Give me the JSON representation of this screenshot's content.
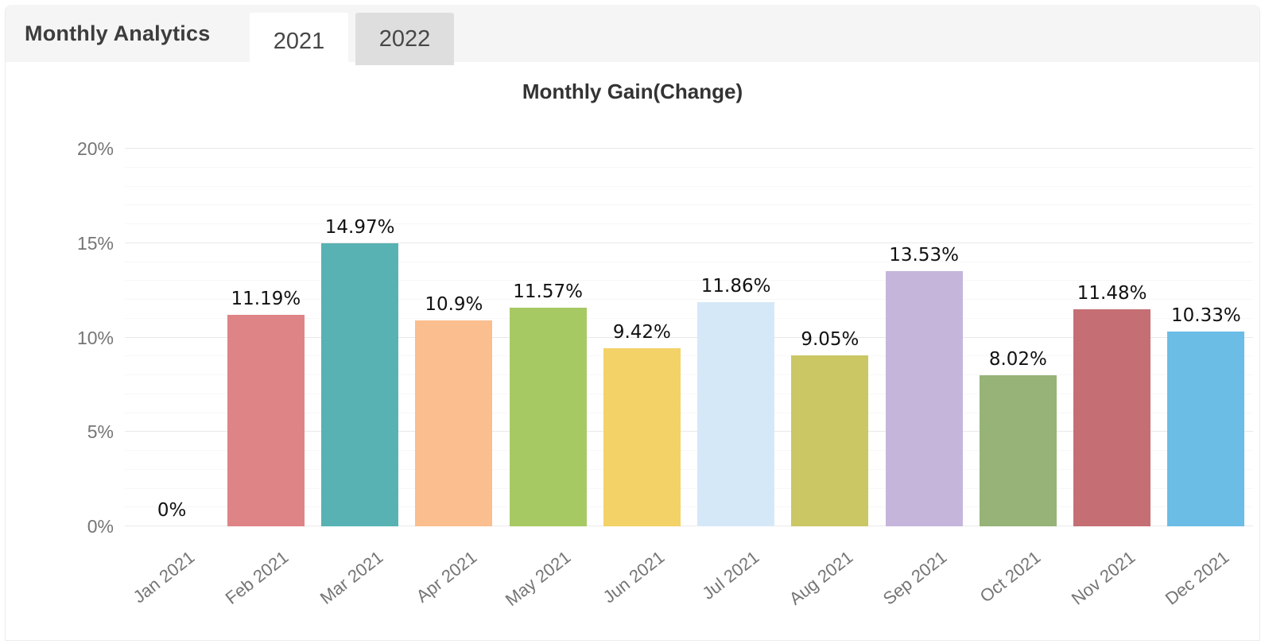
{
  "header": {
    "title": "Monthly Analytics",
    "tabs": [
      {
        "label": "2021",
        "active": true
      },
      {
        "label": "2022",
        "active": false
      }
    ]
  },
  "colors": {
    "header_bg": "#f5f5f6",
    "tab_active_bg": "#ffffff",
    "tab_inactive_bg": "#dedede",
    "header_text": "#3d3d3d",
    "chart_title_text": "#333333",
    "axis_label_text": "#757575",
    "value_label_text": "#111111",
    "gridline_major": "#e9e9e9",
    "gridline_minor": "#f7f7f7"
  },
  "chart_data": {
    "type": "bar",
    "title": "Monthly Gain(Change)",
    "categories": [
      "Jan 2021",
      "Feb 2021",
      "Mar 2021",
      "Apr 2021",
      "May 2021",
      "Jun 2021",
      "Jul 2021",
      "Aug 2021",
      "Sep 2021",
      "Oct 2021",
      "Nov 2021",
      "Dec 2021"
    ],
    "values": [
      0,
      11.19,
      14.97,
      10.9,
      11.57,
      9.42,
      11.86,
      9.05,
      13.53,
      8.02,
      11.48,
      10.33
    ],
    "value_labels": [
      "0%",
      "11.19%",
      "14.97%",
      "10.9%",
      "11.57%",
      "9.42%",
      "11.86%",
      "9.05%",
      "13.53%",
      "8.02%",
      "11.48%",
      "10.33%"
    ],
    "bar_colors": [
      null,
      "#df8486",
      "#58b2b3",
      "#fabe8f",
      "#a7c964",
      "#f3d268",
      "#d5e8f8",
      "#cbc764",
      "#c5b5db",
      "#97b378",
      "#c56f74",
      "#6cbde6"
    ],
    "xlabel": "",
    "ylabel": "",
    "ylim": [
      0,
      20
    ],
    "yticks": [
      0,
      5,
      10,
      15,
      20
    ],
    "ytick_labels": [
      "0%",
      "5%",
      "10%",
      "15%",
      "20%"
    ],
    "minor_grid_step": 1,
    "grid": true,
    "legend": false,
    "x_tick_rotation_deg": -38
  }
}
